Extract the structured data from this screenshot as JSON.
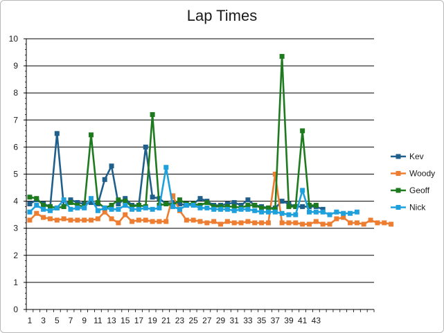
{
  "chart_data": {
    "type": "line",
    "title": "Lap Times",
    "xlabel": "",
    "ylabel": "",
    "ylim": [
      0,
      10
    ],
    "yticks": [
      0,
      1,
      2,
      3,
      4,
      5,
      6,
      7,
      8,
      9,
      10
    ],
    "xlim": [
      1,
      51
    ],
    "xtick_labels": [
      "1",
      "3",
      "5",
      "7",
      "9",
      "11",
      "13",
      "15",
      "17",
      "19",
      "21",
      "23",
      "25",
      "27",
      "29",
      "31",
      "33",
      "35",
      "37",
      "39",
      "41",
      "43"
    ],
    "grid": "horizontal",
    "legend_position": "right",
    "series": [
      {
        "name": "Kev",
        "color": "#1f5f8b",
        "values": [
          3.9,
          4.05,
          3.9,
          3.8,
          6.5,
          3.8,
          4.05,
          3.95,
          3.9,
          3.95,
          3.9,
          4.8,
          5.3,
          3.9,
          4.1,
          3.85,
          3.85,
          6.0,
          4.15,
          4.1,
          3.9,
          3.95,
          3.9,
          3.85,
          3.9,
          4.1,
          4.0,
          3.85,
          3.85,
          3.9,
          3.95,
          3.85,
          4.05,
          3.85,
          3.8,
          3.75,
          3.75,
          4.0,
          3.9,
          3.8,
          3.8,
          3.8,
          3.8,
          3.7
        ]
      },
      {
        "name": "Woody",
        "color": "#ed7d31",
        "values": [
          3.3,
          3.55,
          3.4,
          3.35,
          3.3,
          3.35,
          3.3,
          3.3,
          3.3,
          3.3,
          3.35,
          3.6,
          3.35,
          3.2,
          3.5,
          3.25,
          3.3,
          3.3,
          3.25,
          3.25,
          3.25,
          4.2,
          3.65,
          3.3,
          3.3,
          3.25,
          3.2,
          3.25,
          3.15,
          3.25,
          3.2,
          3.2,
          3.25,
          3.2,
          3.2,
          3.2,
          5.0,
          3.2,
          3.2,
          3.2,
          3.15,
          3.15,
          3.25,
          3.15,
          3.15,
          3.35,
          3.4,
          3.2,
          3.2,
          3.15,
          3.3,
          3.2,
          3.2,
          3.15
        ]
      },
      {
        "name": "Geoff",
        "color": "#1e7a1e",
        "values": [
          4.15,
          4.1,
          3.85,
          3.8,
          3.75,
          3.8,
          3.95,
          3.85,
          3.8,
          6.45,
          3.95,
          3.75,
          3.85,
          4.05,
          4.0,
          3.8,
          3.85,
          3.8,
          7.2,
          3.85,
          3.9,
          3.85,
          4.05,
          3.9,
          3.9,
          3.85,
          3.95,
          3.8,
          3.8,
          3.8,
          3.8,
          3.75,
          3.85,
          3.85,
          3.75,
          3.75,
          3.7,
          9.35,
          3.8,
          3.8,
          6.6,
          3.85,
          3.85
        ]
      },
      {
        "name": "Nick",
        "color": "#1ea0dc",
        "values": [
          3.6,
          3.85,
          3.7,
          3.65,
          3.75,
          4.05,
          3.7,
          3.75,
          3.75,
          4.1,
          3.65,
          3.75,
          3.7,
          3.7,
          3.85,
          3.7,
          3.7,
          3.75,
          3.7,
          3.75,
          5.25,
          3.8,
          3.7,
          3.85,
          3.85,
          3.75,
          3.75,
          3.7,
          3.7,
          3.7,
          3.65,
          3.7,
          3.7,
          3.65,
          3.6,
          3.6,
          3.6,
          3.55,
          3.5,
          3.5,
          4.4,
          3.6,
          3.6,
          3.6,
          3.5,
          3.6,
          3.55,
          3.55,
          3.6
        ]
      }
    ]
  }
}
